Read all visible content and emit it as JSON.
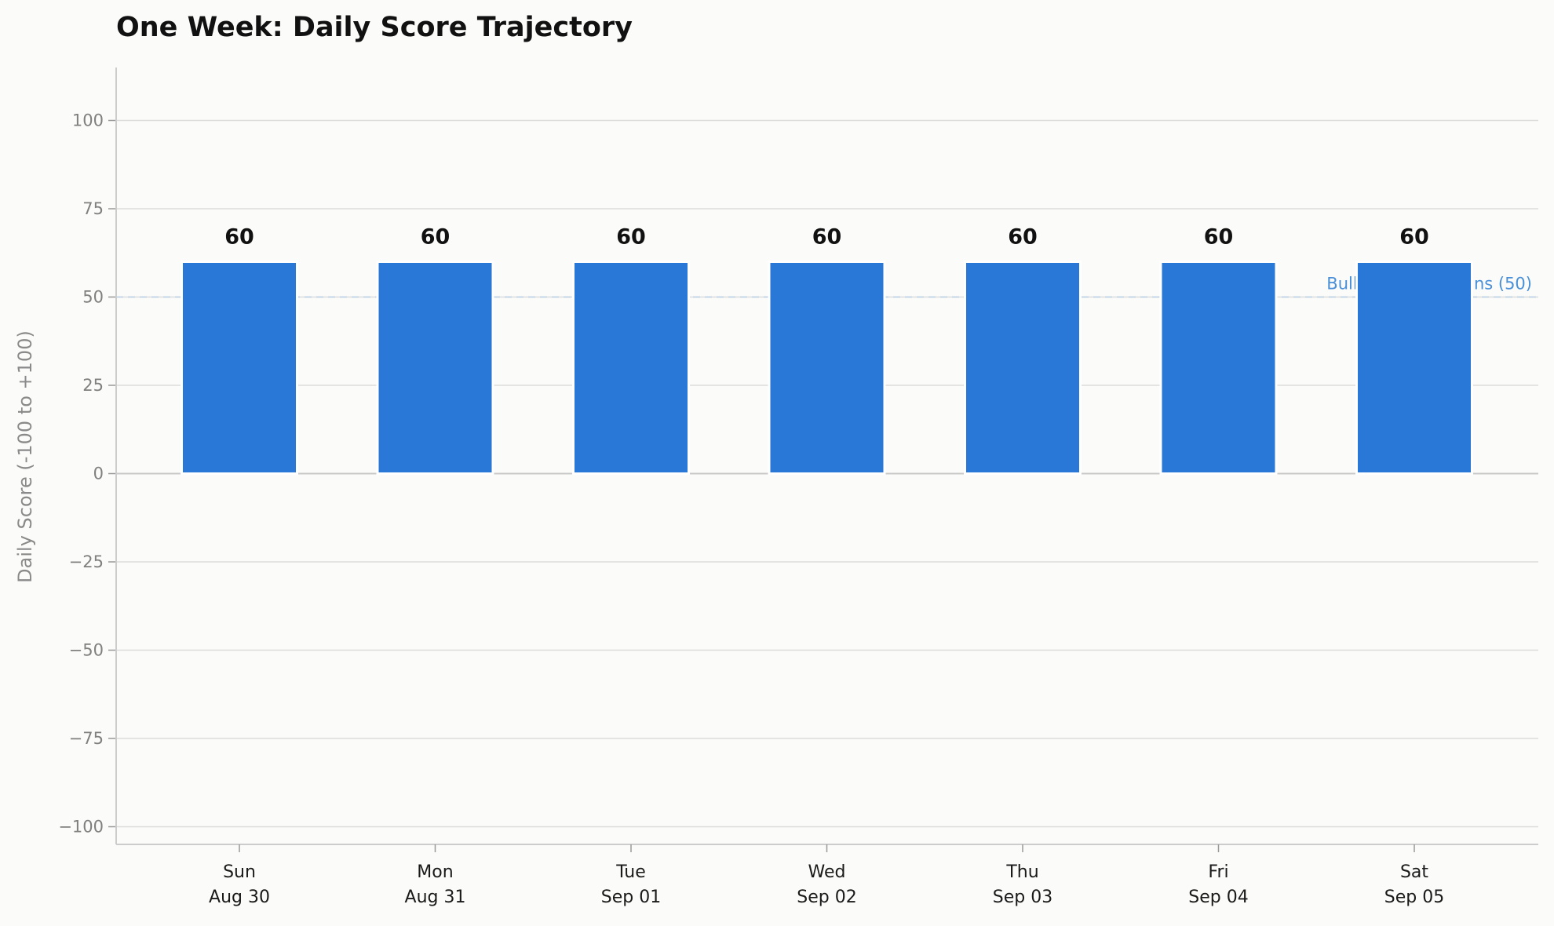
{
  "chart_data": {
    "type": "bar",
    "title": "One Week: Daily Score Trajectory",
    "xlabel": "",
    "ylabel": "Daily Score (-100 to +100)",
    "ylim": [
      -105,
      115
    ],
    "yticks": [
      -100,
      -75,
      -50,
      -25,
      0,
      25,
      50,
      75,
      100
    ],
    "ytick_labels": [
      "−100",
      "−75",
      "−50",
      "−25",
      "0",
      "25",
      "50",
      "75",
      "100"
    ],
    "categories": [
      [
        "Sun",
        "Aug 30"
      ],
      [
        "Mon",
        "Aug 31"
      ],
      [
        "Tue",
        "Sep 01"
      ],
      [
        "Wed",
        "Sep 02"
      ],
      [
        "Thu",
        "Sep 03"
      ],
      [
        "Fri",
        "Sep 04"
      ],
      [
        "Sat",
        "Sep 05"
      ]
    ],
    "values": [
      60,
      60,
      60,
      60,
      60,
      60,
      60
    ],
    "data_labels": [
      "60",
      "60",
      "60",
      "60",
      "60",
      "60",
      "60"
    ],
    "reference_line": {
      "value": 50,
      "label": "Bullish Expectations (50)",
      "style": "dashed"
    },
    "grid": "horizontal",
    "colors": {
      "bar": "#2977d6",
      "reference": "#4a90d9",
      "reference_line": "#c5d5e8",
      "grid": "#dcdcdc",
      "zero_line": "#c8c8c8",
      "axis": "#cccccc",
      "background": "#fbfbf9"
    }
  }
}
